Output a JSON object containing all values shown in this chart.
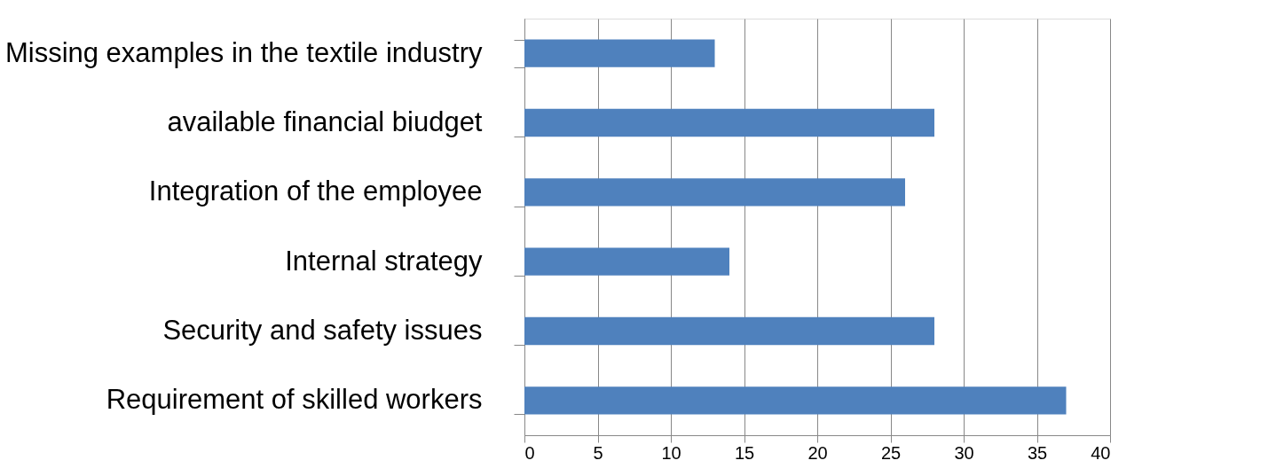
{
  "chart_data": {
    "type": "bar",
    "orientation": "horizontal",
    "categories": [
      "Missing examples in the textile industry",
      "available financial biudget",
      "Integration of the employee",
      "Internal strategy ",
      "Security and safety issues",
      "Requirement of skilled workers"
    ],
    "values": [
      13,
      28,
      26,
      14,
      28,
      37
    ],
    "color": "#4f81bd",
    "xlim": [
      0,
      40
    ],
    "xticks": [
      0,
      5,
      10,
      15,
      20,
      25,
      30,
      35,
      40
    ],
    "grid": "x"
  }
}
